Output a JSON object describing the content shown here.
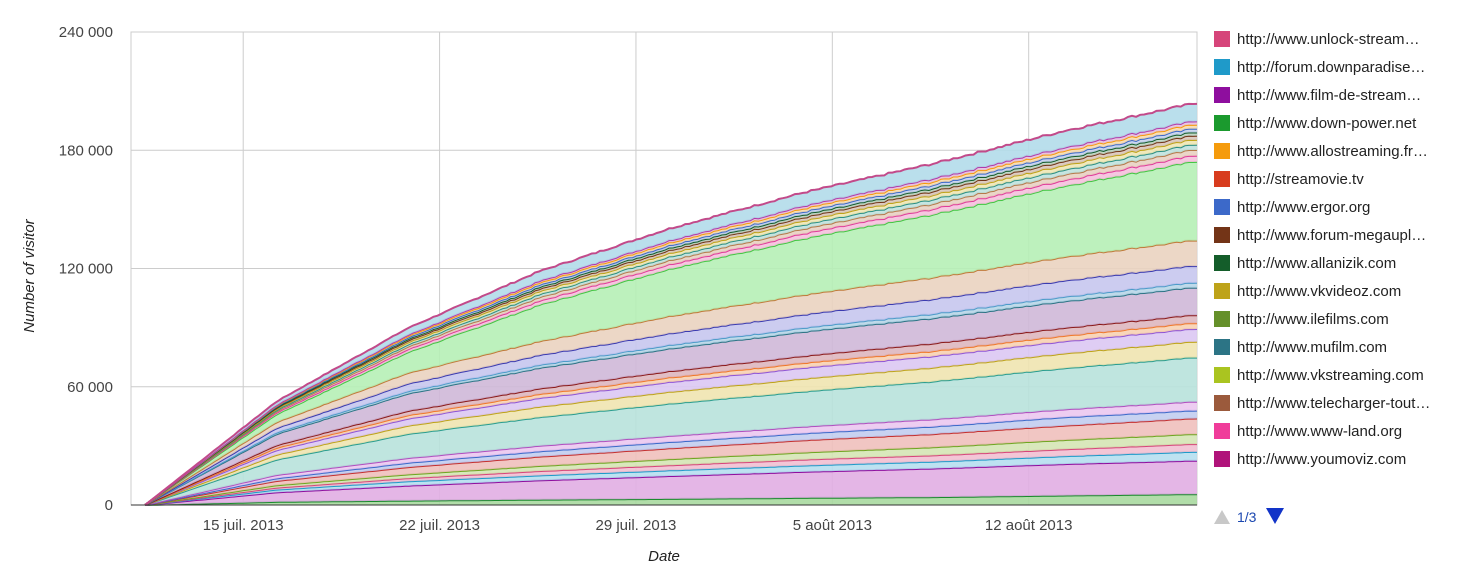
{
  "chart_data": {
    "type": "area",
    "stacked": true,
    "xlabel": "Date",
    "ylabel": "Number of visitor",
    "x_range": [
      "2013-07-11",
      "2013-08-18"
    ],
    "x_ticks": [
      {
        "date": "2013-07-15",
        "label": "15 juil. 2013"
      },
      {
        "date": "2013-07-22",
        "label": "22 juil. 2013"
      },
      {
        "date": "2013-07-29",
        "label": "29 juil. 2013"
      },
      {
        "date": "2013-08-05",
        "label": "5 août 2013"
      },
      {
        "date": "2013-08-12",
        "label": "12 août 2013"
      }
    ],
    "ylim": [
      0,
      240000
    ],
    "y_ticks": [
      {
        "value": 0,
        "label": "0"
      },
      {
        "value": 60000,
        "label": "60 000"
      },
      {
        "value": 120000,
        "label": "120 000"
      },
      {
        "value": 180000,
        "label": "180 000"
      },
      {
        "value": 240000,
        "label": "240 000"
      }
    ],
    "grid": true,
    "legend_position": "right",
    "legend": [
      {
        "label": "http://www.unlock-stream…",
        "color": "#d6457a"
      },
      {
        "label": "http://forum.downparadise…",
        "color": "#1f9ac9"
      },
      {
        "label": "http://www.film-de-stream…",
        "color": "#8e0e9e"
      },
      {
        "label": "http://www.down-power.net",
        "color": "#1b9a2e"
      },
      {
        "label": "http://www.allostreaming.fr…",
        "color": "#f59b0c"
      },
      {
        "label": "http://streamovie.tv",
        "color": "#d83c1e"
      },
      {
        "label": "http://www.ergor.org",
        "color": "#3c69c9"
      },
      {
        "label": "http://www.forum-megaupl…",
        "color": "#733417"
      },
      {
        "label": "http://www.allanizik.com",
        "color": "#145d2a"
      },
      {
        "label": "http://www.vkvideoz.com",
        "color": "#bea319"
      },
      {
        "label": "http://www.ilefilms.com",
        "color": "#65902a"
      },
      {
        "label": "http://www.mufilm.com",
        "color": "#2c7485"
      },
      {
        "label": "http://www.vkstreaming.com",
        "color": "#aac420"
      },
      {
        "label": "http://www.telecharger-tout…",
        "color": "#9b5a3c"
      },
      {
        "label": "http://www.www-land.org",
        "color": "#f03c9a"
      },
      {
        "label": "http://www.youmoviz.com",
        "color": "#b0137a"
      }
    ],
    "pager": {
      "label": "1/3"
    },
    "series": [
      {
        "stroke": "#1b8a2e",
        "fill": "#a8d9a0",
        "values": [
          0,
          1600,
          2200,
          2700,
          3100,
          3600,
          4000,
          4800,
          5500
        ]
      },
      {
        "stroke": "#8e0e9e",
        "fill": "#e1aee3",
        "values": [
          0,
          6400,
          9800,
          12500,
          14700,
          16800,
          18500,
          20800,
          22500
        ]
      },
      {
        "stroke": "#1f9ac9",
        "fill": "#b6dff0",
        "values": [
          0,
          7800,
          12000,
          15000,
          17600,
          20000,
          22000,
          24800,
          27000
        ]
      },
      {
        "stroke": "#d6457a",
        "fill": "#f2c0d2",
        "values": [
          0,
          8800,
          13600,
          17200,
          20200,
          23000,
          25200,
          28300,
          31000
        ]
      },
      {
        "stroke": "#6fa521",
        "fill": "#d5e6b5",
        "values": [
          0,
          10000,
          15500,
          19800,
          23300,
          26600,
          29300,
          33000,
          36000
        ]
      },
      {
        "stroke": "#c43030",
        "fill": "#f0c0bc",
        "values": [
          0,
          12200,
          19200,
          24500,
          28800,
          32800,
          36000,
          40300,
          44000
        ]
      },
      {
        "stroke": "#3c69c9",
        "fill": "#c2cdf0",
        "values": [
          0,
          13500,
          21400,
          27200,
          32000,
          36300,
          39800,
          44600,
          48000
        ]
      },
      {
        "stroke": "#b04fbf",
        "fill": "#ebc8ef",
        "values": [
          0,
          15200,
          23800,
          30000,
          35100,
          39700,
          43500,
          48600,
          52500
        ]
      },
      {
        "stroke": "#2a9d8f",
        "fill": "#b8e2dc",
        "values": [
          0,
          23000,
          36000,
          44500,
          51500,
          57500,
          62700,
          69500,
          75000
        ]
      },
      {
        "stroke": "#bea319",
        "fill": "#efe4b0",
        "values": [
          0,
          25500,
          40200,
          49800,
          57500,
          64000,
          69700,
          77000,
          83000
        ]
      },
      {
        "stroke": "#8f55d6",
        "fill": "#dcc8f3",
        "values": [
          0,
          27800,
          43800,
          54200,
          62500,
          69500,
          75500,
          83200,
          89500
        ]
      },
      {
        "stroke": "#f0782a",
        "fill": "#f7d2b2",
        "values": [
          0,
          29000,
          45500,
          56200,
          64800,
          72000,
          78100,
          86000,
          92500
        ]
      },
      {
        "stroke": "#8a1a1a",
        "fill": "#deb7bf",
        "values": [
          0,
          30300,
          47700,
          59000,
          68000,
          75500,
          82000,
          90000,
          96500
        ]
      },
      {
        "stroke": "#2c7485",
        "fill": "#cfb8d8",
        "values": [
          0,
          36000,
          56500,
          69500,
          79500,
          87800,
          94800,
          103500,
          110500
        ]
      },
      {
        "stroke": "#4d9bc9",
        "fill": "#b8d6e8",
        "values": [
          0,
          36800,
          57700,
          71000,
          81300,
          89800,
          97000,
          105800,
          113000
        ]
      },
      {
        "stroke": "#3b3bb0",
        "fill": "#c6c6ee",
        "values": [
          0,
          39000,
          61500,
          76000,
          87200,
          96500,
          104500,
          114000,
          121500
        ]
      },
      {
        "stroke": "#c07a3a",
        "fill": "#ead3c0",
        "values": [
          0,
          42000,
          67000,
          83000,
          96000,
          106500,
          115500,
          126000,
          134500
        ]
      },
      {
        "stroke": "#43c643",
        "fill": "#b6f0b6",
        "values": [
          0,
          46000,
          77500,
          101500,
          120000,
          135000,
          147500,
          162000,
          174500
        ]
      },
      {
        "stroke": "#e03c9a",
        "fill": "#f5c1dd",
        "values": [
          0,
          46900,
          79000,
          103500,
          122300,
          137600,
          150300,
          165000,
          177600
        ]
      },
      {
        "stroke": "#b57a4a",
        "fill": "#e8d2c2",
        "values": [
          0,
          47600,
          80300,
          105300,
          124400,
          140000,
          152900,
          167800,
          180600
        ]
      },
      {
        "stroke": "#2c8f83",
        "fill": "#c0e2de",
        "values": [
          0,
          48200,
          81400,
          106800,
          126200,
          142100,
          155200,
          170300,
          183200
        ]
      },
      {
        "stroke": "#bea319",
        "fill": "#efe7b5",
        "values": [
          0,
          48800,
          82500,
          108300,
          128000,
          144100,
          157400,
          172700,
          185700
        ]
      },
      {
        "stroke": "#733417",
        "fill": "#d9c6bc",
        "values": [
          0,
          49300,
          83400,
          109500,
          129500,
          145800,
          159300,
          174700,
          187800
        ]
      },
      {
        "stroke": "#145d2a",
        "fill": "#c0d6c5",
        "values": [
          0,
          49700,
          84100,
          110500,
          130700,
          147200,
          160800,
          176300,
          189500
        ]
      },
      {
        "stroke": "#3c69c9",
        "fill": "#c7d3f0",
        "values": [
          0,
          50100,
          84900,
          111600,
          132000,
          148700,
          162500,
          178100,
          191400
        ]
      },
      {
        "stroke": "#f59b0c",
        "fill": "#f8dcaf",
        "values": [
          0,
          50500,
          85700,
          112700,
          133400,
          150300,
          164200,
          180000,
          193400
        ]
      },
      {
        "stroke": "#b23aa8",
        "fill": "#e6c2e3",
        "values": [
          0,
          50800,
          86300,
          113600,
          134500,
          151600,
          165700,
          181600,
          195100
        ]
      },
      {
        "stroke": "#c24a8a",
        "fill": "#b3dbea",
        "values": [
          0,
          52500,
          89800,
          118600,
          140500,
          158400,
          173300,
          190000,
          204000
        ]
      }
    ]
  }
}
